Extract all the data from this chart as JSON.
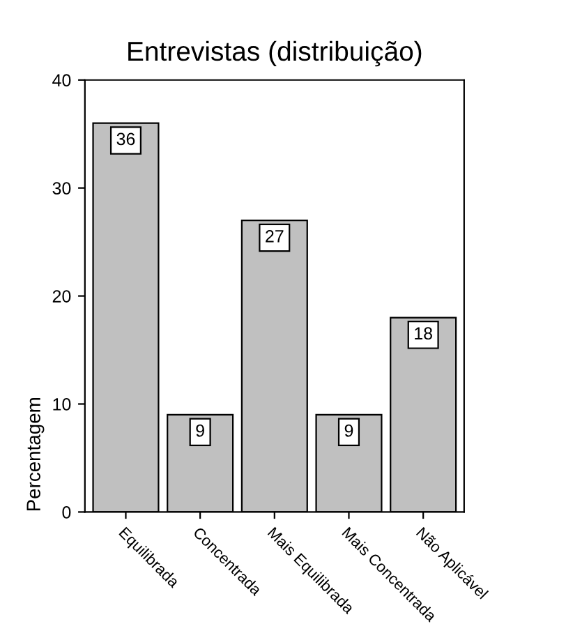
{
  "chart_data": {
    "type": "bar",
    "title": "Entrevistas (distribuição)",
    "ylabel": "Percentagem",
    "categories": [
      "Equilibrada",
      "Concentrada",
      "Mais Equilibrada",
      "Mais Concentrada",
      "Não Aplicável"
    ],
    "values": [
      36,
      9,
      27,
      9,
      18
    ],
    "color": "#c0c0c0",
    "ylim": [
      0,
      40
    ],
    "yticks": [
      0,
      10,
      20,
      30,
      40
    ],
    "grid": false,
    "legend": false,
    "data_labels": true
  }
}
